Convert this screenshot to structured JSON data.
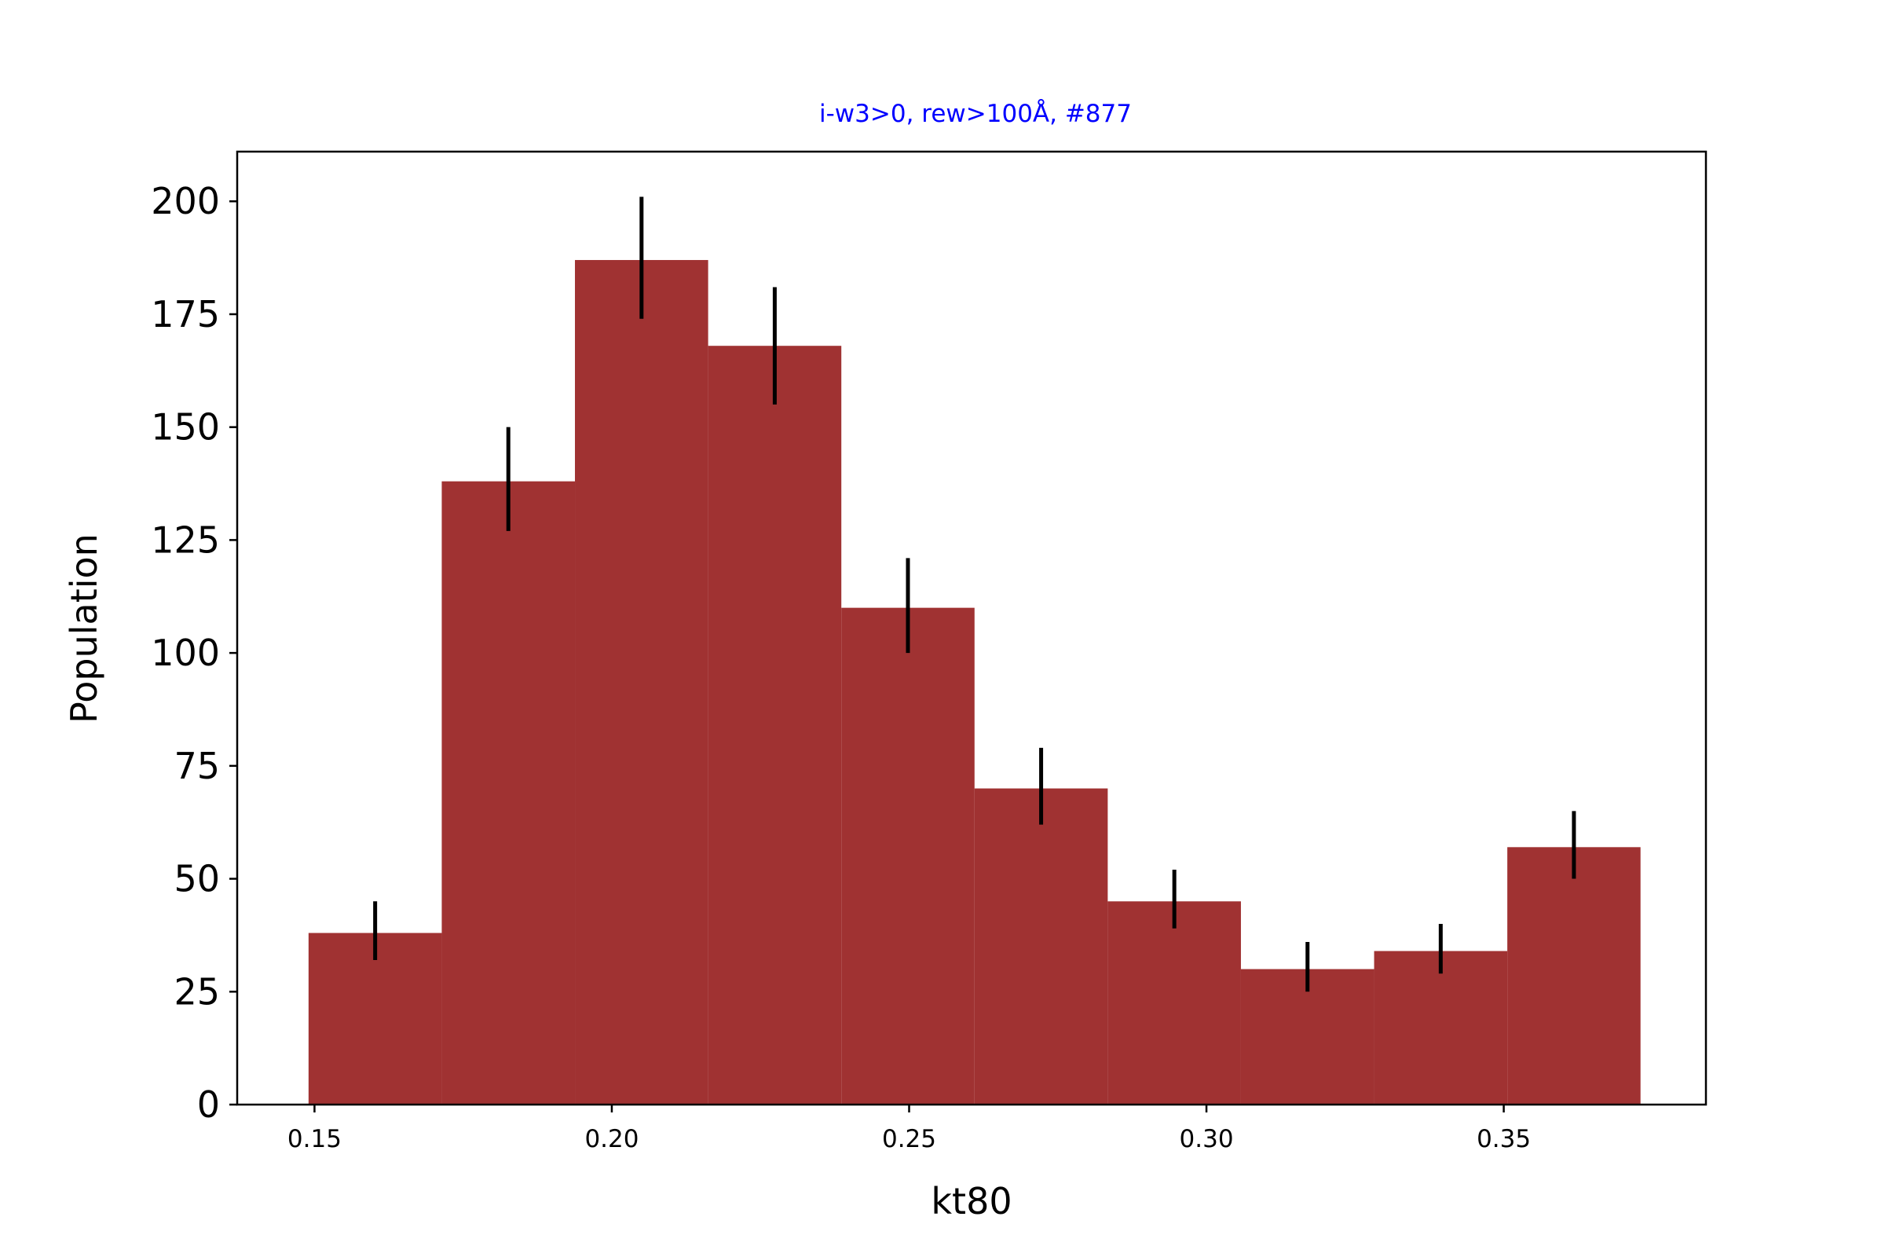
{
  "chart_data": {
    "type": "bar",
    "title": "i-w3>0, rew>100Å, #877",
    "xlabel": "kt80",
    "ylabel": "Population",
    "xlim": [
      0.137,
      0.384
    ],
    "ylim": [
      0,
      211
    ],
    "xticks": [
      0.15,
      0.2,
      0.25,
      0.3,
      0.35
    ],
    "xtick_labels": [
      "0.15",
      "0.20",
      "0.25",
      "0.30",
      "0.35"
    ],
    "yticks": [
      0,
      25,
      50,
      75,
      100,
      125,
      150,
      175,
      200
    ],
    "ytick_labels": [
      "0",
      "25",
      "50",
      "75",
      "100",
      "125",
      "150",
      "175",
      "200"
    ],
    "grid": false,
    "bin_edges": [
      0.149,
      0.1714,
      0.1938,
      0.2162,
      0.2386,
      0.261,
      0.2834,
      0.3058,
      0.3282,
      0.3506,
      0.373
    ],
    "values": [
      38,
      138,
      187,
      168,
      110,
      70,
      45,
      30,
      34,
      57
    ],
    "error_bars": [
      {
        "x": 0.1602,
        "low": 32,
        "high": 45
      },
      {
        "x": 0.1826,
        "low": 127,
        "high": 150
      },
      {
        "x": 0.205,
        "low": 174,
        "high": 201
      },
      {
        "x": 0.2274,
        "low": 155,
        "high": 181
      },
      {
        "x": 0.2498,
        "low": 100,
        "high": 121
      },
      {
        "x": 0.2722,
        "low": 62,
        "high": 79
      },
      {
        "x": 0.2946,
        "low": 39,
        "high": 52
      },
      {
        "x": 0.317,
        "low": 25,
        "high": 36
      },
      {
        "x": 0.3394,
        "low": 29,
        "high": 40
      },
      {
        "x": 0.3618,
        "low": 50,
        "high": 65
      }
    ],
    "colors": {
      "bar": "#a03232",
      "error": "#000000",
      "title": "#0000ff",
      "axis": "#000000"
    }
  }
}
